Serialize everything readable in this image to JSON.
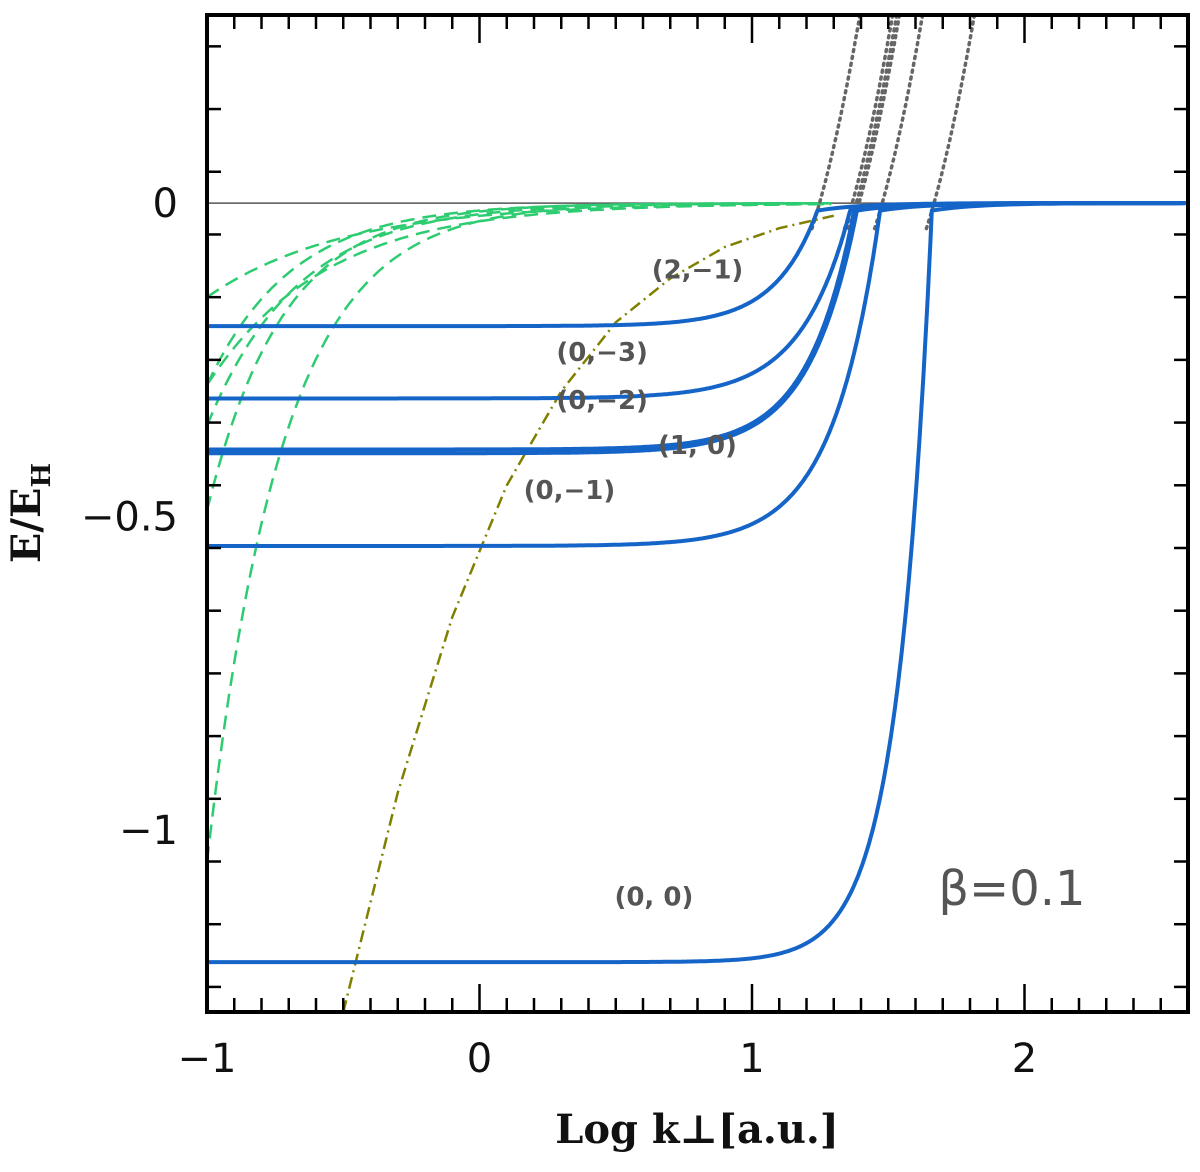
{
  "chart_data": {
    "type": "line",
    "title": "",
    "xlabel": "Log k⊥[a.u.]",
    "ylabel": "E/E_H",
    "ylabel_main": "E/E",
    "ylabel_sub": "H",
    "xlim": [
      -1,
      2.6
    ],
    "ylim": [
      -1.29,
      0.3
    ],
    "x_ticks": [
      -1,
      0,
      1,
      2
    ],
    "x_tick_labels": [
      "−1",
      "0",
      "1",
      "2"
    ],
    "y_ticks": [
      0,
      -0.5,
      -1
    ],
    "y_tick_labels": [
      "0",
      "−0.5",
      "−1"
    ],
    "annotation": "β=0.1",
    "reference_line": {
      "y": 0,
      "color": "#555555"
    },
    "series": [
      {
        "name": "(0, 0)",
        "style": "solid",
        "color": "#1565c8",
        "label": "(0, 0)",
        "E0": -1.175,
        "x_threshold": 1.66,
        "x_mid": 1.22,
        "steep": 8.0
      },
      {
        "name": "(0,-1)",
        "style": "solid",
        "color": "#1565c8",
        "label": "(0,−1)",
        "E0": -0.5,
        "x_threshold": 1.47,
        "x_mid": 1.05,
        "steep": 5.8
      },
      {
        "name": "(1, 0)",
        "style": "solid",
        "color": "#1565c8",
        "label": "(1, 0)",
        "E0": -0.37,
        "x_threshold": 1.385,
        "x_mid": 0.93,
        "steep": 5.7
      },
      {
        "name": "(0,-2)",
        "style": "solid",
        "color": "#1565c8",
        "label": "(0,−2)",
        "E0": -0.36,
        "x_threshold": 1.375,
        "x_mid": 0.96,
        "steep": 5.9
      },
      {
        "name": "(0,-3)",
        "style": "solid",
        "color": "#1565c8",
        "label": "(0,−3)",
        "E0": -0.29,
        "x_threshold": 1.36,
        "x_mid": 0.89,
        "steep": 5.6
      },
      {
        "name": "(2,-1)",
        "style": "solid",
        "color": "#1565c8",
        "label": "(2,−1)",
        "E0": -0.18,
        "x_threshold": 1.24,
        "x_mid": 0.86,
        "steep": 6.4
      },
      {
        "name": "free-limit asymptotes",
        "style": "dashed",
        "color": "#2ecc71",
        "curves": [
          {
            "y0": -1.05,
            "s": 3.6
          },
          {
            "y0": -0.49,
            "s": 3.6
          },
          {
            "y0": -0.355,
            "s": 3.0
          },
          {
            "y0": -0.29,
            "s": 3.2
          },
          {
            "y0": -0.29,
            "s": 2.3
          },
          {
            "y0": -0.15,
            "s": 2.0
          }
        ]
      },
      {
        "name": "Landau threshold",
        "style": "dotted",
        "color": "#666666",
        "x_thresholds": [
          1.24,
          1.36,
          1.375,
          1.385,
          1.47,
          1.66
        ]
      },
      {
        "name": "Coulomb limit",
        "style": "dash-dot",
        "color": "#808000",
        "points": [
          [
            -0.5,
            -1.29
          ],
          [
            -0.3,
            -0.94
          ],
          [
            -0.1,
            -0.66
          ],
          [
            0.1,
            -0.45
          ],
          [
            0.3,
            -0.3
          ],
          [
            0.5,
            -0.19
          ],
          [
            0.7,
            -0.12
          ],
          [
            0.9,
            -0.07
          ],
          [
            1.1,
            -0.04
          ],
          [
            1.3,
            -0.02
          ]
        ]
      }
    ]
  }
}
